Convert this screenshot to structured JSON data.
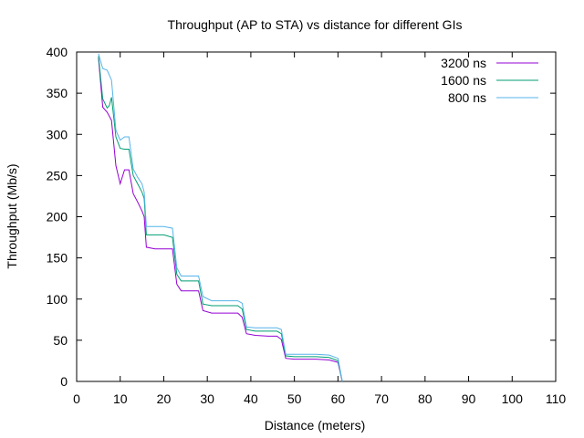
{
  "chart_data": {
    "type": "line",
    "title": "Throughput (AP to STA) vs distance for different GIs",
    "xlabel": "Distance (meters)",
    "ylabel": "Throughput (Mb/s)",
    "xlim": [
      0,
      110
    ],
    "ylim": [
      0,
      400
    ],
    "xticks": [
      0,
      10,
      20,
      30,
      40,
      50,
      60,
      70,
      80,
      90,
      100,
      110
    ],
    "yticks": [
      0,
      50,
      100,
      150,
      200,
      250,
      300,
      350,
      400
    ],
    "grid": false,
    "legend_position": "top-right",
    "series": [
      {
        "name": "3200 ns",
        "color": "#9400d3",
        "x": [
          5,
          6,
          7,
          8,
          9,
          10,
          11,
          12,
          13,
          14,
          15,
          15.5,
          16,
          18,
          20,
          22,
          23,
          24,
          26,
          28,
          29,
          31,
          34,
          37,
          38,
          39,
          41,
          44,
          46,
          47,
          48,
          50,
          55,
          58,
          60,
          61
        ],
        "y": [
          393,
          333,
          327,
          317,
          262,
          240,
          257,
          257,
          228,
          218,
          207,
          200,
          163,
          161,
          161,
          161,
          118,
          110,
          110,
          110,
          86,
          83,
          83,
          83,
          78,
          58,
          56,
          55,
          55,
          51,
          28,
          27,
          27,
          26,
          23,
          0
        ]
      },
      {
        "name": "1600 ns",
        "color": "#009e73",
        "x": [
          5,
          6,
          7,
          7.5,
          8,
          9,
          10,
          11,
          12,
          13,
          14,
          15,
          15.5,
          16,
          18,
          20,
          22,
          23,
          24,
          26,
          28,
          29,
          31,
          34,
          37,
          38,
          39,
          41,
          44,
          46,
          47,
          48,
          50,
          55,
          58,
          60,
          61
        ],
        "y": [
          395,
          343,
          332,
          335,
          345,
          297,
          283,
          282,
          282,
          250,
          240,
          230,
          222,
          178,
          178,
          178,
          175,
          130,
          122,
          122,
          122,
          94,
          92,
          92,
          92,
          88,
          63,
          61,
          61,
          61,
          58,
          31,
          30,
          30,
          29,
          25,
          0
        ]
      },
      {
        "name": "800 ns",
        "color": "#56b4e9",
        "x": [
          5,
          6,
          7,
          8,
          9,
          10,
          11,
          12,
          13,
          14,
          15,
          15.5,
          16,
          18,
          20,
          22,
          23,
          24,
          26,
          28,
          29,
          31,
          34,
          37,
          38,
          39,
          41,
          44,
          46,
          47,
          48,
          50,
          55,
          58,
          60,
          61
        ],
        "y": [
          398,
          380,
          378,
          366,
          305,
          293,
          297,
          297,
          258,
          248,
          240,
          230,
          188,
          188,
          188,
          186,
          138,
          128,
          128,
          128,
          103,
          98,
          98,
          98,
          95,
          66,
          65,
          65,
          65,
          63,
          33,
          33,
          33,
          32,
          28,
          0
        ]
      }
    ]
  }
}
